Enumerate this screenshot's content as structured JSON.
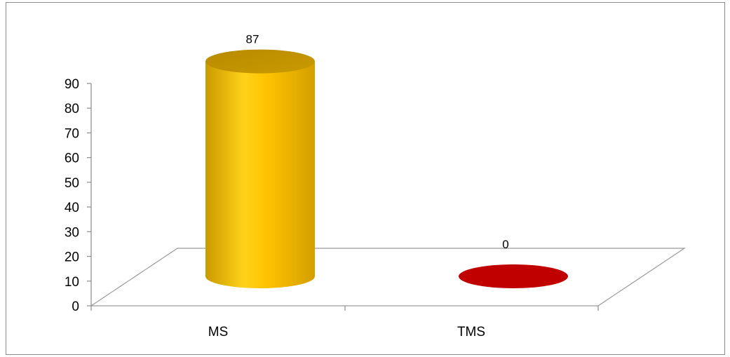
{
  "chart_data": {
    "type": "bar",
    "categories": [
      "MS",
      "TMS"
    ],
    "values": [
      87,
      0
    ],
    "colors": [
      "#F5BB00",
      "#C00000"
    ],
    "ylim": [
      0,
      90
    ],
    "yticks": [
      "0",
      "10",
      "20",
      "30",
      "40",
      "50",
      "60",
      "70",
      "80",
      "90"
    ],
    "data_labels": [
      "87",
      "0"
    ],
    "grid": false,
    "style": "3d-cylinder"
  }
}
